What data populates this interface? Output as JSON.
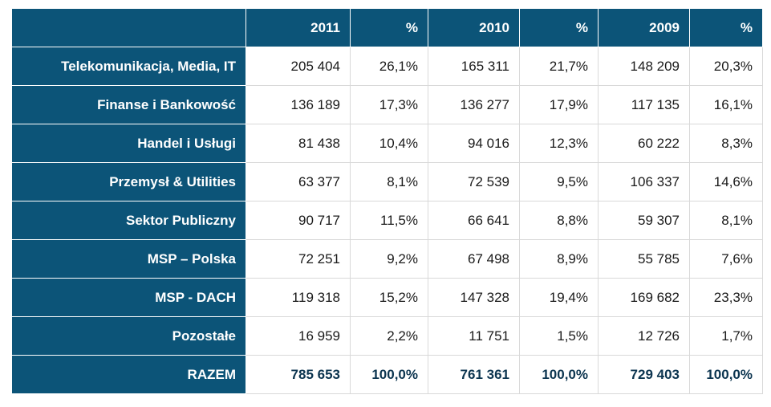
{
  "header": {
    "corner": "",
    "columns": [
      "2011",
      "%",
      "2010",
      "%",
      "2009",
      "%"
    ]
  },
  "rows": [
    {
      "label": "Telekomunikacja, Media, IT",
      "values": [
        "205 404",
        "26,1%",
        "165 311",
        "21,7%",
        "148 209",
        "20,3%"
      ]
    },
    {
      "label": "Finanse i Bankowość",
      "values": [
        "136 189",
        "17,3%",
        "136 277",
        "17,9%",
        "117 135",
        "16,1%"
      ]
    },
    {
      "label": "Handel i Usługi",
      "values": [
        "81 438",
        "10,4%",
        "94 016",
        "12,3%",
        "60 222",
        "8,3%"
      ]
    },
    {
      "label": "Przemysł & Utilities",
      "values": [
        "63 377",
        "8,1%",
        "72 539",
        "9,5%",
        "106 337",
        "14,6%"
      ]
    },
    {
      "label": "Sektor Publiczny",
      "values": [
        "90 717",
        "11,5%",
        "66 641",
        "8,8%",
        "59 307",
        "8,1%"
      ]
    },
    {
      "label": "MSP – Polska",
      "values": [
        "72 251",
        "9,2%",
        "67 498",
        "8,9%",
        "55 785",
        "7,6%"
      ]
    },
    {
      "label": "MSP - DACH",
      "values": [
        "119 318",
        "15,2%",
        "147 328",
        "19,4%",
        "169 682",
        "23,3%"
      ]
    },
    {
      "label": "Pozostałe",
      "values": [
        "16 959",
        "2,2%",
        "11 751",
        "1,5%",
        "12 726",
        "1,7%"
      ]
    }
  ],
  "total": {
    "label": "RAZEM",
    "values": [
      "785 653",
      "100,0%",
      "761 361",
      "100,0%",
      "729 403",
      "100,0%"
    ]
  },
  "colors": {
    "header_bg": "#0c5478",
    "header_text": "#ffffff",
    "total_text": "#0c3550"
  }
}
